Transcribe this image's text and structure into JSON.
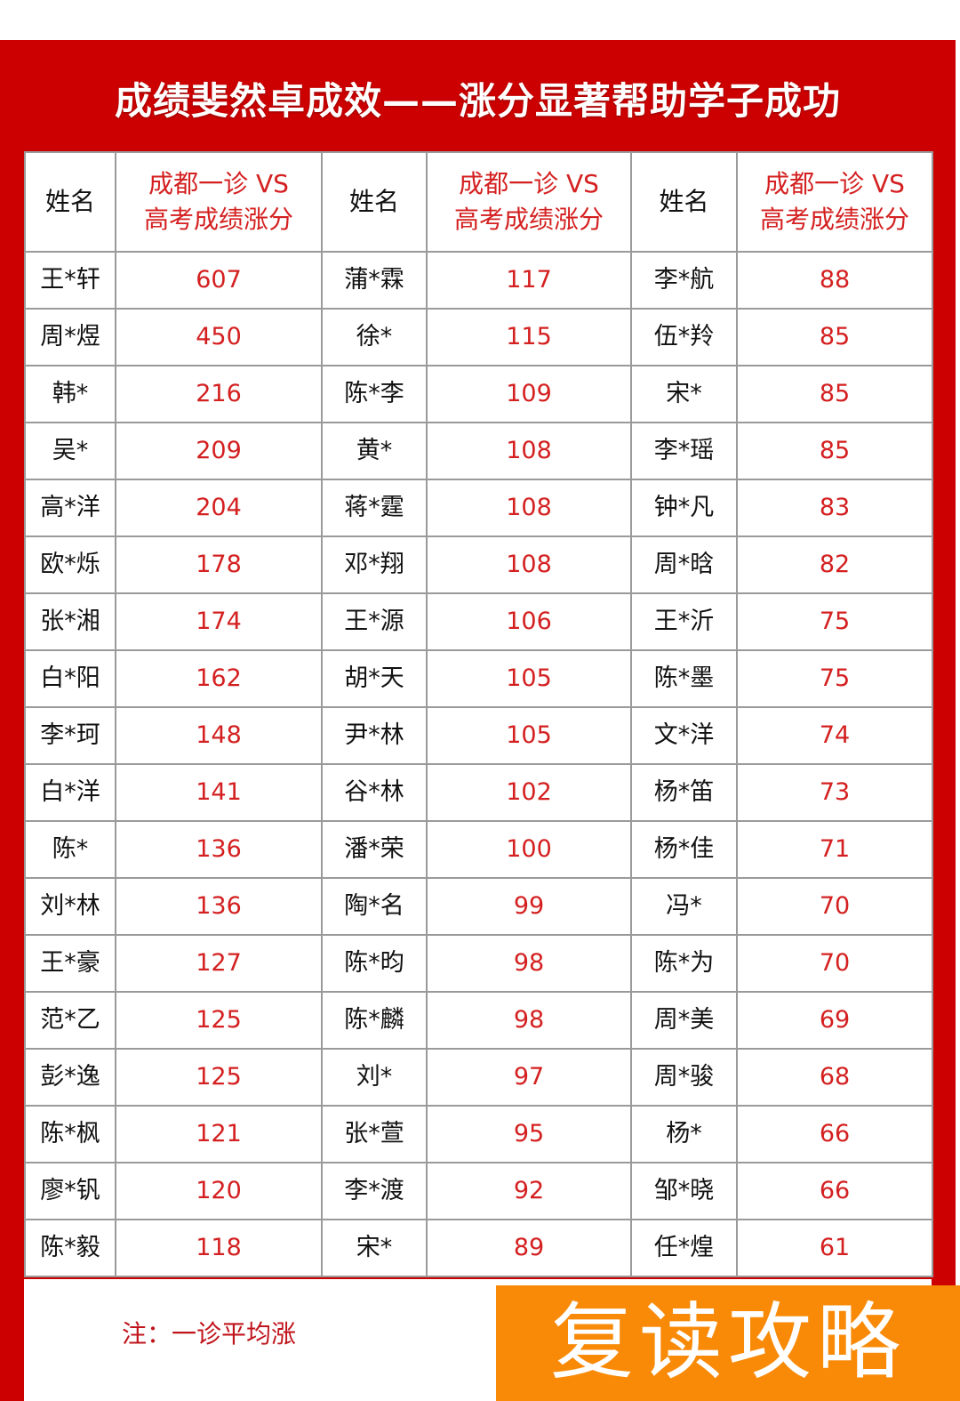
{
  "title": "成绩斐然卓成效——涨分显著帮助学子成功",
  "header": {
    "name": "姓名",
    "score": "成都一诊 VS 高考成绩涨分"
  },
  "rows": [
    [
      "王*轩",
      "607",
      "蒲*霖",
      "117",
      "李*航",
      "88"
    ],
    [
      "周*煜",
      "450",
      "徐*",
      "115",
      "伍*羚",
      "85"
    ],
    [
      "韩*",
      "216",
      "陈*李",
      "109",
      "宋*",
      "85"
    ],
    [
      "吴*",
      "209",
      "黄*",
      "108",
      "李*瑶",
      "85"
    ],
    [
      "高*洋",
      "204",
      "蒋*霆",
      "108",
      "钟*凡",
      "83"
    ],
    [
      "欧*烁",
      "178",
      "邓*翔",
      "108",
      "周*晗",
      "82"
    ],
    [
      "张*湘",
      "174",
      "王*源",
      "106",
      "王*沂",
      "75"
    ],
    [
      "白*阳",
      "162",
      "胡*天",
      "105",
      "陈*墨",
      "75"
    ],
    [
      "李*珂",
      "148",
      "尹*林",
      "105",
      "文*洋",
      "74"
    ],
    [
      "白*洋",
      "141",
      "谷*林",
      "102",
      "杨*笛",
      "73"
    ],
    [
      "陈*",
      "136",
      "潘*荣",
      "100",
      "杨*佳",
      "71"
    ],
    [
      "刘*林",
      "136",
      "陶*名",
      "99",
      "冯*",
      "70"
    ],
    [
      "王*豪",
      "127",
      "陈*昀",
      "98",
      "陈*为",
      "70"
    ],
    [
      "范*乙",
      "125",
      "陈*麟",
      "98",
      "周*美",
      "69"
    ],
    [
      "彭*逸",
      "125",
      "刘*",
      "97",
      "周*骏",
      "68"
    ],
    [
      "陈*枫",
      "121",
      "张*萱",
      "95",
      "杨*",
      "66"
    ],
    [
      "廖*钒",
      "120",
      "李*渡",
      "92",
      "邹*晓",
      "66"
    ],
    [
      "陈*毅",
      "118",
      "宋*",
      "89",
      "任*煌",
      "61"
    ]
  ],
  "note": "注：一诊平均涨",
  "watermark": "复读攻略",
  "colors": {
    "frame": "#cc0000",
    "value": "#d42020",
    "watermark_bg": "#f88a08"
  }
}
